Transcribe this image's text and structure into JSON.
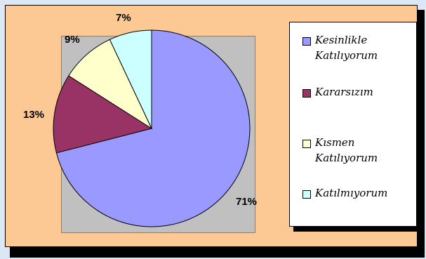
{
  "chart_data": {
    "type": "pie",
    "categories": [
      "Kesinlikle Katılıyorum",
      "Kararsızım",
      "Kısmen Katılıyorum",
      "Katılmıyorum"
    ],
    "values": [
      71,
      13,
      9,
      7
    ],
    "labels": [
      "71%",
      "13%",
      "9%",
      "7%"
    ],
    "colors": [
      "#9999ff",
      "#993366",
      "#ffffcc",
      "#ccffff"
    ],
    "legend_position": "right"
  },
  "colors": {
    "frame_background": "#fcc995",
    "plot_area": "#c0c0c0",
    "page_background": "#dbe7f5"
  }
}
